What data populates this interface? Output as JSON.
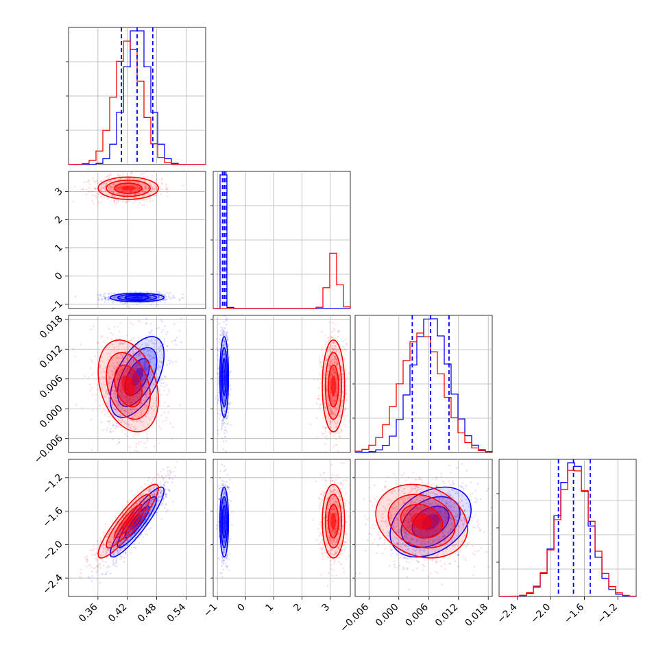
{
  "chart_data": {
    "type": "corner",
    "grid": true,
    "series": [
      {
        "color": "#0000ff"
      },
      {
        "color": "#ff0000"
      }
    ],
    "parameters": [
      {
        "range": [
          0.3,
          0.58
        ],
        "ticks": [
          0.36,
          0.42,
          0.48,
          0.54
        ],
        "tick_labels": [
          "0.36",
          "0.42",
          "0.48",
          "0.54"
        ]
      },
      {
        "range": [
          -1.15,
          3.72
        ],
        "ticks": [
          -1,
          0,
          1,
          2,
          3
        ],
        "tick_labels": [
          "−1",
          "0",
          "1",
          "2",
          "3"
        ]
      },
      {
        "range": [
          -0.0088,
          0.0188
        ],
        "ticks": [
          -0.006,
          0.0,
          0.006,
          0.012,
          0.018
        ],
        "tick_labels": [
          "−0.006",
          "0.000",
          "0.006",
          "0.012",
          "0.018"
        ]
      },
      {
        "range": [
          -2.62,
          -0.98
        ],
        "ticks": [
          -2.4,
          -2.0,
          -1.6,
          -1.2
        ],
        "tick_labels": [
          "−2.4",
          "−2.0",
          "−1.6",
          "−1.2"
        ]
      }
    ],
    "histograms": [
      {
        "bins": [
          0.3,
          0.4
        ]
      },
      {},
      {},
      {}
    ],
    "quantile_lines": {
      "color": "#0000ff",
      "param_0": [
        0.408,
        0.44,
        0.472
      ],
      "param_1": [
        -0.82,
        -0.76,
        -0.7
      ],
      "param_2": [
        0.0027,
        0.0064,
        0.0101
      ],
      "param_3": [
        -1.91,
        -1.73,
        -1.53
      ]
    },
    "modes": {
      "blue": {
        "mean": [
          0.44,
          -0.76,
          0.0064,
          -1.73
        ],
        "std": [
          0.025,
          0.07,
          0.0037,
          0.19
        ]
      },
      "red": {
        "mean": [
          0.422,
          3.12,
          0.0046,
          -1.72
        ],
        "std": [
          0.028,
          0.18,
          0.0042,
          0.2
        ]
      }
    }
  }
}
